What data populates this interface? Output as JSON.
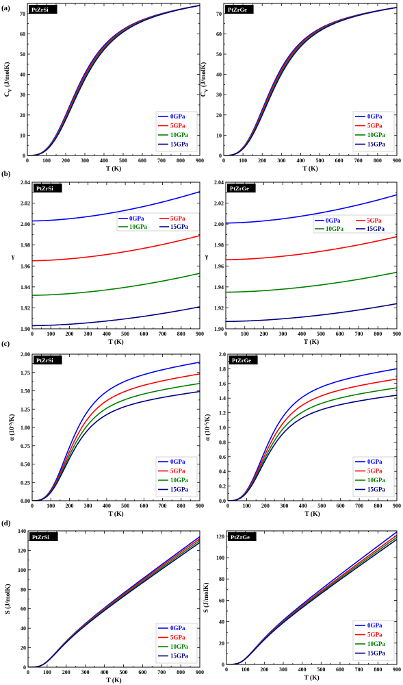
{
  "figure": {
    "panel_letters": [
      "(a)",
      "(b)",
      "(c)",
      "(d)"
    ],
    "series": [
      {
        "name": "0GPa",
        "color": "#0000ff"
      },
      {
        "name": "5GPa",
        "color": "#ff0000"
      },
      {
        "name": "10GPa",
        "color": "#008000"
      },
      {
        "name": "15GPa",
        "color": "#000080"
      }
    ]
  },
  "chart_data": [
    {
      "type": "line",
      "compound": "PtZrSi",
      "quantity": "Cv",
      "xlabel": "T (K)",
      "ylabel": "C_V (J/molK)",
      "xlim": [
        0,
        900
      ],
      "ylim": [
        0,
        75
      ],
      "xticks": [
        0,
        100,
        200,
        300,
        400,
        500,
        600,
        700,
        800,
        900
      ],
      "yticks": [
        0,
        10,
        20,
        30,
        40,
        50,
        60,
        70
      ],
      "legend": "bottom-right",
      "x": [
        0,
        900
      ],
      "curve": "debye",
      "theta": 0.3,
      "series_values": [
        [
          0,
          74
        ],
        [
          0,
          74
        ],
        [
          0,
          74
        ],
        [
          0,
          74
        ]
      ]
    },
    {
      "type": "line",
      "compound": "PtZrGe",
      "quantity": "Cv",
      "xlabel": "T (K)",
      "ylabel": "C_V (J/molK)",
      "xlim": [
        0,
        900
      ],
      "ylim": [
        0,
        75
      ],
      "xticks": [
        0,
        100,
        200,
        300,
        400,
        500,
        600,
        700,
        800,
        900
      ],
      "yticks": [
        0,
        10,
        20,
        30,
        40,
        50,
        60,
        70
      ],
      "legend": "bottom-right",
      "x": [
        0,
        900
      ],
      "curve": "debye",
      "theta": 0.28,
      "series_values": [
        [
          0,
          73
        ],
        [
          0,
          73
        ],
        [
          0,
          73
        ],
        [
          0,
          73
        ]
      ]
    },
    {
      "type": "line",
      "compound": "PtZrSi",
      "quantity": "gamma",
      "xlabel": "T (K)",
      "ylabel": "γ",
      "xlim": [
        0,
        900
      ],
      "ylim": [
        1.9,
        2.04
      ],
      "xticks": [
        0,
        100,
        200,
        300,
        400,
        500,
        600,
        700,
        800,
        900
      ],
      "yticks": [
        1.9,
        1.92,
        1.94,
        1.96,
        1.98,
        2.0,
        2.02,
        2.04
      ],
      "legend": "top-right",
      "x": [
        0,
        900
      ],
      "curve": "gamma",
      "series_values": [
        [
          2.003,
          2.031
        ],
        [
          1.965,
          1.989
        ],
        [
          1.932,
          1.953
        ],
        [
          1.903,
          1.921
        ]
      ]
    },
    {
      "type": "line",
      "compound": "PtZrGe",
      "quantity": "gamma",
      "xlabel": "T (K)",
      "ylabel": "γ",
      "xlim": [
        0,
        900
      ],
      "ylim": [
        1.9,
        2.04
      ],
      "xticks": [
        0,
        100,
        200,
        300,
        400,
        500,
        600,
        700,
        800,
        900
      ],
      "yticks": [
        1.9,
        1.92,
        1.94,
        1.96,
        1.98,
        2.0,
        2.02,
        2.04
      ],
      "legend": "top-right",
      "x": [
        0,
        900
      ],
      "curve": "gamma",
      "series_values": [
        [
          2.001,
          2.028
        ],
        [
          1.966,
          1.988
        ],
        [
          1.935,
          1.954
        ],
        [
          1.907,
          1.924
        ]
      ]
    },
    {
      "type": "line",
      "compound": "PtZrSi",
      "quantity": "alpha",
      "xlabel": "T (K)",
      "ylabel": "α (10⁻⁵/K)",
      "xlim": [
        0,
        900
      ],
      "ylim": [
        0,
        2.0
      ],
      "xticks": [
        0,
        100,
        200,
        300,
        400,
        500,
        600,
        700,
        800,
        900
      ],
      "yticks": [
        0.0,
        0.25,
        0.5,
        0.75,
        1.0,
        1.25,
        1.5,
        1.75,
        2.0
      ],
      "ytick_labels": [
        "0.00",
        "0.25",
        "0.50",
        "0.75",
        "1.00",
        "1.25",
        "1.50",
        "1.75",
        "2.00"
      ],
      "legend": "bottom-right",
      "x": [
        0,
        900
      ],
      "curve": "alpha",
      "series_values": [
        [
          0,
          1.89
        ],
        [
          0,
          1.73
        ],
        [
          0,
          1.6
        ],
        [
          0,
          1.49
        ]
      ]
    },
    {
      "type": "line",
      "compound": "PtZrGe",
      "quantity": "alpha",
      "xlabel": "T (K)",
      "ylabel": "α (10⁻⁵/K)",
      "xlim": [
        0,
        900
      ],
      "ylim": [
        0,
        2.0
      ],
      "xticks": [
        0,
        100,
        200,
        300,
        400,
        500,
        600,
        700,
        800,
        900
      ],
      "yticks": [
        0.0,
        0.2,
        0.4,
        0.6,
        0.8,
        1.0,
        1.2,
        1.4,
        1.6,
        1.8,
        2.0
      ],
      "ytick_labels": [
        "0.0",
        "0.2",
        "0.4",
        "0.6",
        "0.8",
        "1.0",
        "1.2",
        "1.4",
        "1.6",
        "1.8",
        "2.0"
      ],
      "legend": "bottom-right",
      "x": [
        0,
        900
      ],
      "curve": "alpha",
      "series_values": [
        [
          0,
          1.8
        ],
        [
          0,
          1.66
        ],
        [
          0,
          1.54
        ],
        [
          0,
          1.44
        ]
      ]
    },
    {
      "type": "line",
      "compound": "PtZrSi",
      "quantity": "S",
      "xlabel": "T (K)",
      "ylabel": "S (J/molK)",
      "xlim": [
        0,
        900
      ],
      "ylim": [
        0,
        140
      ],
      "xticks": [
        0,
        100,
        200,
        300,
        400,
        500,
        600,
        700,
        800,
        900
      ],
      "yticks": [
        0,
        20,
        40,
        60,
        80,
        100,
        120,
        140
      ],
      "legend": "bottom-right",
      "x": [
        0,
        900
      ],
      "curve": "entropy",
      "series_values": [
        [
          0,
          134
        ],
        [
          0,
          132
        ],
        [
          0,
          130
        ],
        [
          0,
          128
        ]
      ]
    },
    {
      "type": "line",
      "compound": "PtZrGe",
      "quantity": "S",
      "xlabel": "T (K)",
      "ylabel": "S (J/molK)",
      "xlim": [
        0,
        900
      ],
      "ylim": [
        0,
        125
      ],
      "xticks": [
        0,
        100,
        200,
        300,
        400,
        500,
        600,
        700,
        800,
        900
      ],
      "yticks": [
        0,
        20,
        40,
        60,
        80,
        100,
        120
      ],
      "legend": "bottom-right",
      "x": [
        0,
        900
      ],
      "curve": "entropy",
      "series_values": [
        [
          0,
          124
        ],
        [
          0,
          121
        ],
        [
          0,
          119
        ],
        [
          0,
          117
        ]
      ]
    }
  ]
}
